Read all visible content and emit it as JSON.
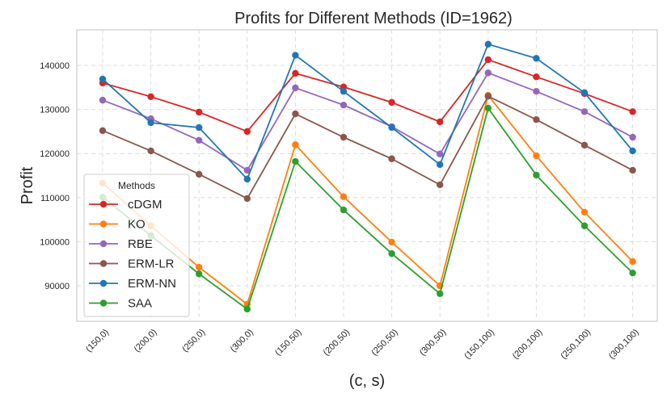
{
  "chart_data": {
    "type": "line",
    "title": "Profits for Different Methods (ID=1962)",
    "xlabel": "(c, s)",
    "ylabel": "Profit",
    "categories": [
      "(150,0)",
      "(200,0)",
      "(250,0)",
      "(300,0)",
      "(150,50)",
      "(200,50)",
      "(250,50)",
      "(300,50)",
      "(150,100)",
      "(200,100)",
      "(250,100)",
      "(300,100)"
    ],
    "yticks": [
      90000,
      100000,
      110000,
      120000,
      130000,
      140000
    ],
    "ylim": [
      81500,
      147000
    ],
    "grid": true,
    "legend": {
      "title": "Methods",
      "placement": "lower-left"
    },
    "series": [
      {
        "name": "cDGM",
        "color": "#d62728",
        "values": [
          136000,
          132900,
          129400,
          125000,
          138200,
          135100,
          131600,
          127200,
          141300,
          137400,
          133600,
          129500
        ]
      },
      {
        "name": "KO",
        "color": "#ff7f0e",
        "values": [
          113300,
          103600,
          94200,
          85800,
          122000,
          110200,
          99900,
          90000,
          133200,
          119500,
          106700,
          95500
        ]
      },
      {
        "name": "RBE",
        "color": "#9467bd",
        "values": [
          132100,
          127900,
          123000,
          116200,
          134900,
          131000,
          126100,
          119900,
          138300,
          134100,
          129500,
          123700
        ]
      },
      {
        "name": "ERM-LR",
        "color": "#8c564b",
        "values": [
          125200,
          120600,
          115300,
          109800,
          129000,
          123700,
          118800,
          112900,
          133000,
          127700,
          121900,
          116200
        ]
      },
      {
        "name": "ERM-NN",
        "color": "#1f77b4",
        "values": [
          136900,
          127000,
          125900,
          114200,
          142300,
          134100,
          125900,
          117500,
          144800,
          141600,
          133800,
          120600
        ]
      },
      {
        "name": "SAA",
        "color": "#2ca02c",
        "values": [
          110100,
          101400,
          92700,
          84700,
          118200,
          107200,
          97300,
          88200,
          130300,
          115100,
          103600,
          92900
        ]
      }
    ]
  }
}
